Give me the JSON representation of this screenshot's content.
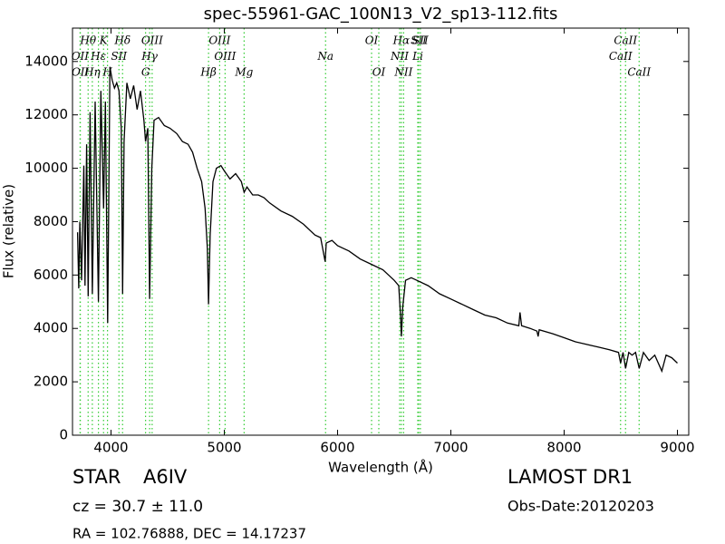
{
  "chart_data": {
    "type": "line",
    "title": "spec-55961-GAC_100N13_V2_sp13-112.fits",
    "x_label": "Wavelength (Å)",
    "y_label": "Flux (relative)",
    "color": "#000000",
    "line_color": "#33cc33",
    "xlim": [
      3660,
      9100
    ],
    "ylim": [
      0,
      15250
    ],
    "xticks": [
      4000,
      5000,
      6000,
      7000,
      8000,
      9000
    ],
    "yticks": [
      0,
      2000,
      4000,
      6000,
      8000,
      10000,
      12000,
      14000
    ],
    "x": [
      3705,
      3715,
      3725,
      3740,
      3760,
      3770,
      3785,
      3798,
      3815,
      3835,
      3860,
      3889,
      3910,
      3934,
      3950,
      3970,
      3990,
      4010,
      4030,
      4050,
      4070,
      4090,
      4102,
      4115,
      4140,
      4170,
      4200,
      4230,
      4260,
      4290,
      4305,
      4325,
      4341,
      4360,
      4380,
      4420,
      4470,
      4520,
      4580,
      4630,
      4680,
      4720,
      4760,
      4800,
      4830,
      4850,
      4861,
      4875,
      4900,
      4930,
      4970,
      5000,
      5050,
      5100,
      5150,
      5175,
      5200,
      5250,
      5300,
      5350,
      5400,
      5500,
      5600,
      5700,
      5800,
      5850,
      5890,
      5900,
      5950,
      6000,
      6100,
      6200,
      6300,
      6400,
      6450,
      6500,
      6540,
      6555,
      6563,
      6575,
      6600,
      6650,
      6700,
      6800,
      6900,
      7000,
      7100,
      7200,
      7300,
      7400,
      7500,
      7600,
      7610,
      7625,
      7700,
      7760,
      7770,
      7780,
      7900,
      8000,
      8100,
      8200,
      8300,
      8400,
      8480,
      8498,
      8520,
      8542,
      8570,
      8600,
      8630,
      8662,
      8700,
      8750,
      8800,
      8862,
      8900,
      8950,
      9000
    ],
    "values": [
      7600,
      5500,
      8000,
      5800,
      10100,
      5600,
      10900,
      5200,
      12100,
      5300,
      12500,
      5000,
      12900,
      8500,
      12500,
      4200,
      13800,
      13300,
      13000,
      13200,
      12900,
      11500,
      5300,
      11000,
      13200,
      12600,
      13100,
      12200,
      12900,
      11800,
      11000,
      11500,
      5100,
      10000,
      11800,
      11900,
      11600,
      11500,
      11300,
      11000,
      10900,
      10600,
      10000,
      9500,
      8500,
      7000,
      4900,
      7500,
      9500,
      10000,
      10100,
      9900,
      9600,
      9800,
      9500,
      9100,
      9300,
      9000,
      9000,
      8900,
      8700,
      8400,
      8200,
      7900,
      7500,
      7400,
      6500,
      7200,
      7300,
      7100,
      6900,
      6600,
      6400,
      6200,
      6000,
      5800,
      5600,
      4500,
      3700,
      4800,
      5800,
      5900,
      5800,
      5600,
      5300,
      5100,
      4900,
      4700,
      4500,
      4400,
      4200,
      4100,
      4600,
      4100,
      4000,
      3900,
      3700,
      3950,
      3800,
      3650,
      3500,
      3400,
      3300,
      3200,
      3100,
      2700,
      3100,
      2500,
      3100,
      3000,
      3100,
      2500,
      3100,
      2800,
      3000,
      2400,
      3000,
      2900,
      2700
    ],
    "lines": [
      {
        "wavelength": 3798,
        "label": "Hθ"
      },
      {
        "wavelength": 3727,
        "label": "OII"
      },
      {
        "wavelength": 3729,
        "label": "OII"
      },
      {
        "wavelength": 3934,
        "label": "K"
      },
      {
        "wavelength": 3889,
        "label": "Hε"
      },
      {
        "wavelength": 3835,
        "label": "Hη"
      },
      {
        "wavelength": 4102,
        "label": "Hδ"
      },
      {
        "wavelength": 4070,
        "label": "SII"
      },
      {
        "wavelength": 3969,
        "label": "H"
      },
      {
        "wavelength": 4363,
        "label": "OIII"
      },
      {
        "wavelength": 4341,
        "label": "Hγ"
      },
      {
        "wavelength": 4305,
        "label": "G"
      },
      {
        "wavelength": 4959,
        "label": "OIII"
      },
      {
        "wavelength": 5007,
        "label": "OIII"
      },
      {
        "wavelength": 4861,
        "label": "Hβ"
      },
      {
        "wavelength": 6563,
        "label": "Hα"
      },
      {
        "wavelength": 5894,
        "label": "Na"
      },
      {
        "wavelength": 5175,
        "label": "Mg"
      },
      {
        "wavelength": 6300,
        "label": "OI"
      },
      {
        "wavelength": 6548,
        "label": "NII"
      },
      {
        "wavelength": 6364,
        "label": "OI"
      },
      {
        "wavelength": 6716,
        "label": "SII"
      },
      {
        "wavelength": 6708,
        "label": "Li"
      },
      {
        "wavelength": 6583,
        "label": "NII"
      },
      {
        "wavelength": 8542,
        "label": "CaII"
      },
      {
        "wavelength": 8498,
        "label": "CaII"
      },
      {
        "wavelength": 8662,
        "label": "CaII"
      },
      {
        "wavelength": 6731,
        "label": "SII"
      }
    ],
    "info": {
      "object_class": "STAR",
      "subclass": "A6IV",
      "survey": "LAMOST DR1",
      "redshift": "cz = 30.7 ± 11.0",
      "obs_date": "Obs-Date:20120203",
      "coords": "RA = 102.76888, DEC = 14.17237"
    }
  }
}
